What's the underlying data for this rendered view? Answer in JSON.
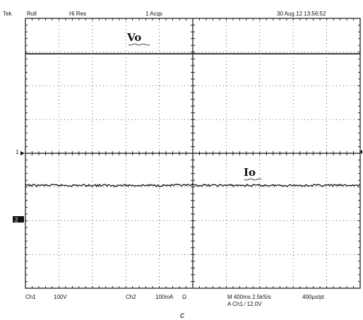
{
  "header": {
    "brand": "Tek",
    "mode": "Roll",
    "acq_mode": "Hi Res",
    "acqs": "1 Acqs",
    "timestamp": "30 Aug 12 13:56:52"
  },
  "footer": {
    "ch1_name": "Ch1",
    "ch1_scale": "100V",
    "ch2_name": "Ch2",
    "ch2_scale": "100mA",
    "ch2_coupling": "Ω",
    "timebase": "M 400ms 2.5kS/s",
    "trigger": "A Ch1 ⁄ 12.0V",
    "resolution": "400µs/pt"
  },
  "caption": "c",
  "markers": {
    "ch1_ref": "1",
    "ch2_ref": "2"
  },
  "chart_data": {
    "type": "line",
    "title": "",
    "xlabel": "",
    "ylabel": "",
    "x_divisions": 10,
    "y_divisions": 8,
    "xlim": [
      0,
      10
    ],
    "ylim": [
      -4,
      4
    ],
    "grid": true,
    "series": [
      {
        "name": "Vo",
        "unit_label": "Vo",
        "level_div": 2.95,
        "noise_div": 0.0,
        "color": "#111111"
      },
      {
        "name": "Io",
        "unit_label": "Io",
        "level_div": -0.95,
        "noise_div": 0.03,
        "color": "#111111"
      }
    ],
    "ref_markers": [
      {
        "label": "1",
        "level_div": 0
      },
      {
        "label": "2",
        "level_div": -2
      }
    ]
  }
}
